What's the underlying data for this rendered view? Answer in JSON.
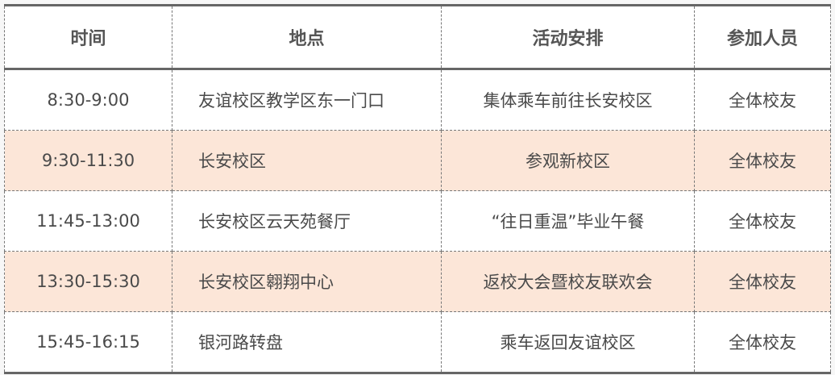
{
  "table": {
    "headers": [
      "时间",
      "地点",
      "活动安排",
      "参加人员"
    ],
    "rows": [
      [
        "8:30-9:00",
        "友谊校区教学区东一门口",
        "集体乘车前往长安校区",
        "全体校友"
      ],
      [
        "9:30-11:30",
        "长安校区",
        "参观新校区",
        "全体校友"
      ],
      [
        "11:45-13:00",
        "长安校区云天苑餐厅",
        "“往日重温”毕业午餐",
        "全体校友"
      ],
      [
        "13:30-15:30",
        "长安校区翱翔中心",
        "返校大会暨校友联欢会",
        "全体校友"
      ],
      [
        "15:45-16:15",
        "银河路转盘",
        "乘车返回友谊校区",
        "全体校友"
      ]
    ],
    "colors": {
      "alt_row_bg": "#fce6d8",
      "border": "#666666"
    }
  }
}
